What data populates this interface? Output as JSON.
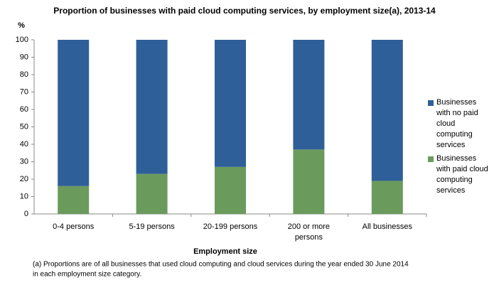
{
  "chart_data": {
    "type": "stacked-bar",
    "title": "Proportion of businesses  with paid cloud computing services, by employment size(a), 2013-14",
    "y_label": "%",
    "x_label": "Employment size",
    "categories": [
      "0-4 persons",
      "5-19 persons",
      "20-199 persons",
      "200 or more persons",
      "All businesses"
    ],
    "series": [
      {
        "name": "Businesses with no paid cloud computing services",
        "color": "#2e5f99",
        "values": [
          84,
          77,
          73,
          63,
          81
        ]
      },
      {
        "name": "Businesses with paid cloud computing services",
        "color": "#6b9b5c",
        "values": [
          16,
          23,
          27,
          37,
          19
        ]
      }
    ],
    "ylim": [
      0,
      100
    ],
    "yticks": [
      0,
      10,
      20,
      30,
      40,
      50,
      60,
      70,
      80,
      90,
      100
    ],
    "legend": "right",
    "footnote": [
      "(a) Proportions are of all businesses that used cloud computing and cloud services during the year ended 30 June 2014",
      "in each employment size category."
    ]
  }
}
